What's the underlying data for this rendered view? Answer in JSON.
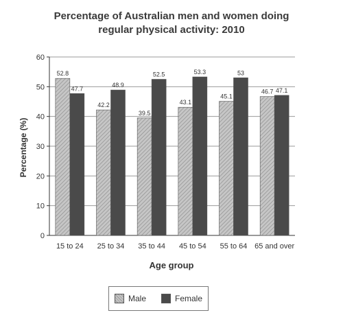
{
  "chart_data": {
    "type": "bar",
    "title_lines": [
      "Percentage of Australian men and women doing",
      "regular physical activity: 2010"
    ],
    "xlabel": "Age group",
    "ylabel": "Percentage (%)",
    "categories": [
      "15 to 24",
      "25 to 34",
      "35 to 44",
      "45 to 54",
      "55 to 64",
      "65 and over"
    ],
    "series": [
      {
        "name": "Male",
        "values": [
          52.8,
          42.2,
          39.5,
          43.1,
          45.1,
          46.7
        ],
        "color": "#b5b5b5",
        "pattern": "diagonal-hatch"
      },
      {
        "name": "Female",
        "values": [
          47.7,
          48.9,
          52.5,
          53.3,
          53,
          47.1
        ],
        "color": "#4a4a4a",
        "pattern": "solid"
      }
    ],
    "value_labels": [
      [
        "52.8",
        "42.2",
        "39.5",
        "43.1",
        "45.1",
        "46.7"
      ],
      [
        "47.7",
        "48.9",
        "52.5",
        "53.3",
        "53",
        "47.1"
      ]
    ],
    "ylim": [
      0,
      60
    ],
    "yticks": [
      0,
      10,
      20,
      30,
      40,
      50,
      60
    ],
    "grid": true,
    "legend_position": "bottom-center"
  }
}
